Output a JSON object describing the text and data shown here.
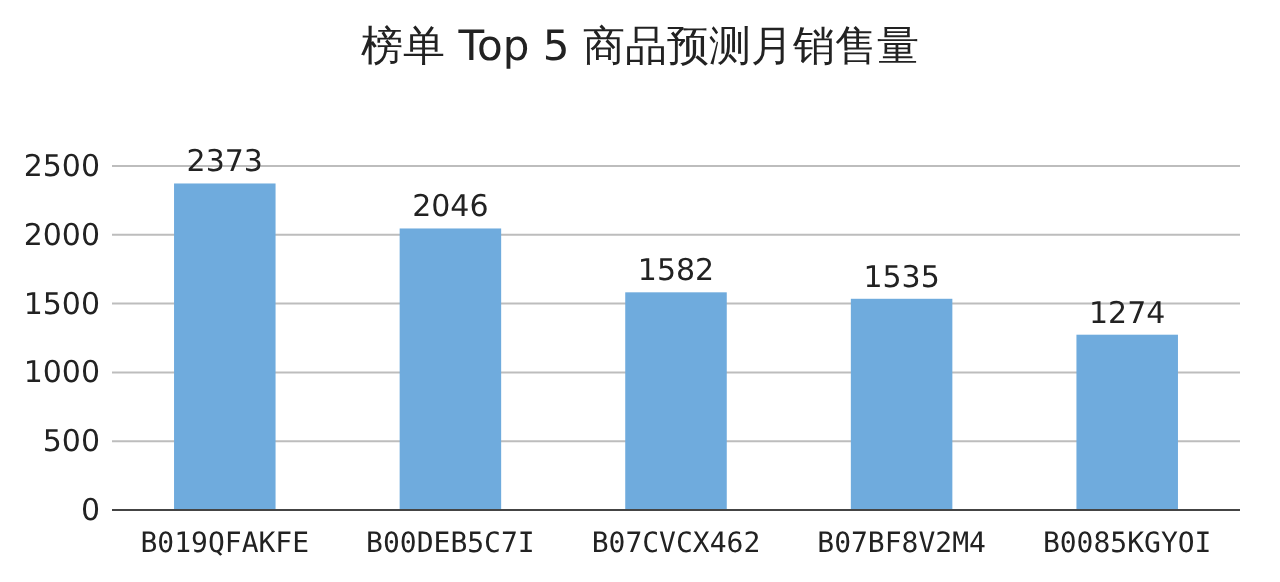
{
  "chart_data": {
    "type": "bar",
    "title": "榜单 Top 5 商品预测月销售量",
    "categories": [
      "B019QFAKFE",
      "B00DEB5C7I",
      "B07CVCX462",
      "B07BF8V2M4",
      "B0085KGYOI"
    ],
    "values": [
      2373,
      2046,
      1582,
      1535,
      1274
    ],
    "color": "#6fabdd",
    "ylim": [
      0,
      2500
    ],
    "yticks": [
      0,
      500,
      1000,
      1500,
      2000,
      2500
    ],
    "grid": "y",
    "data_labels": true
  }
}
